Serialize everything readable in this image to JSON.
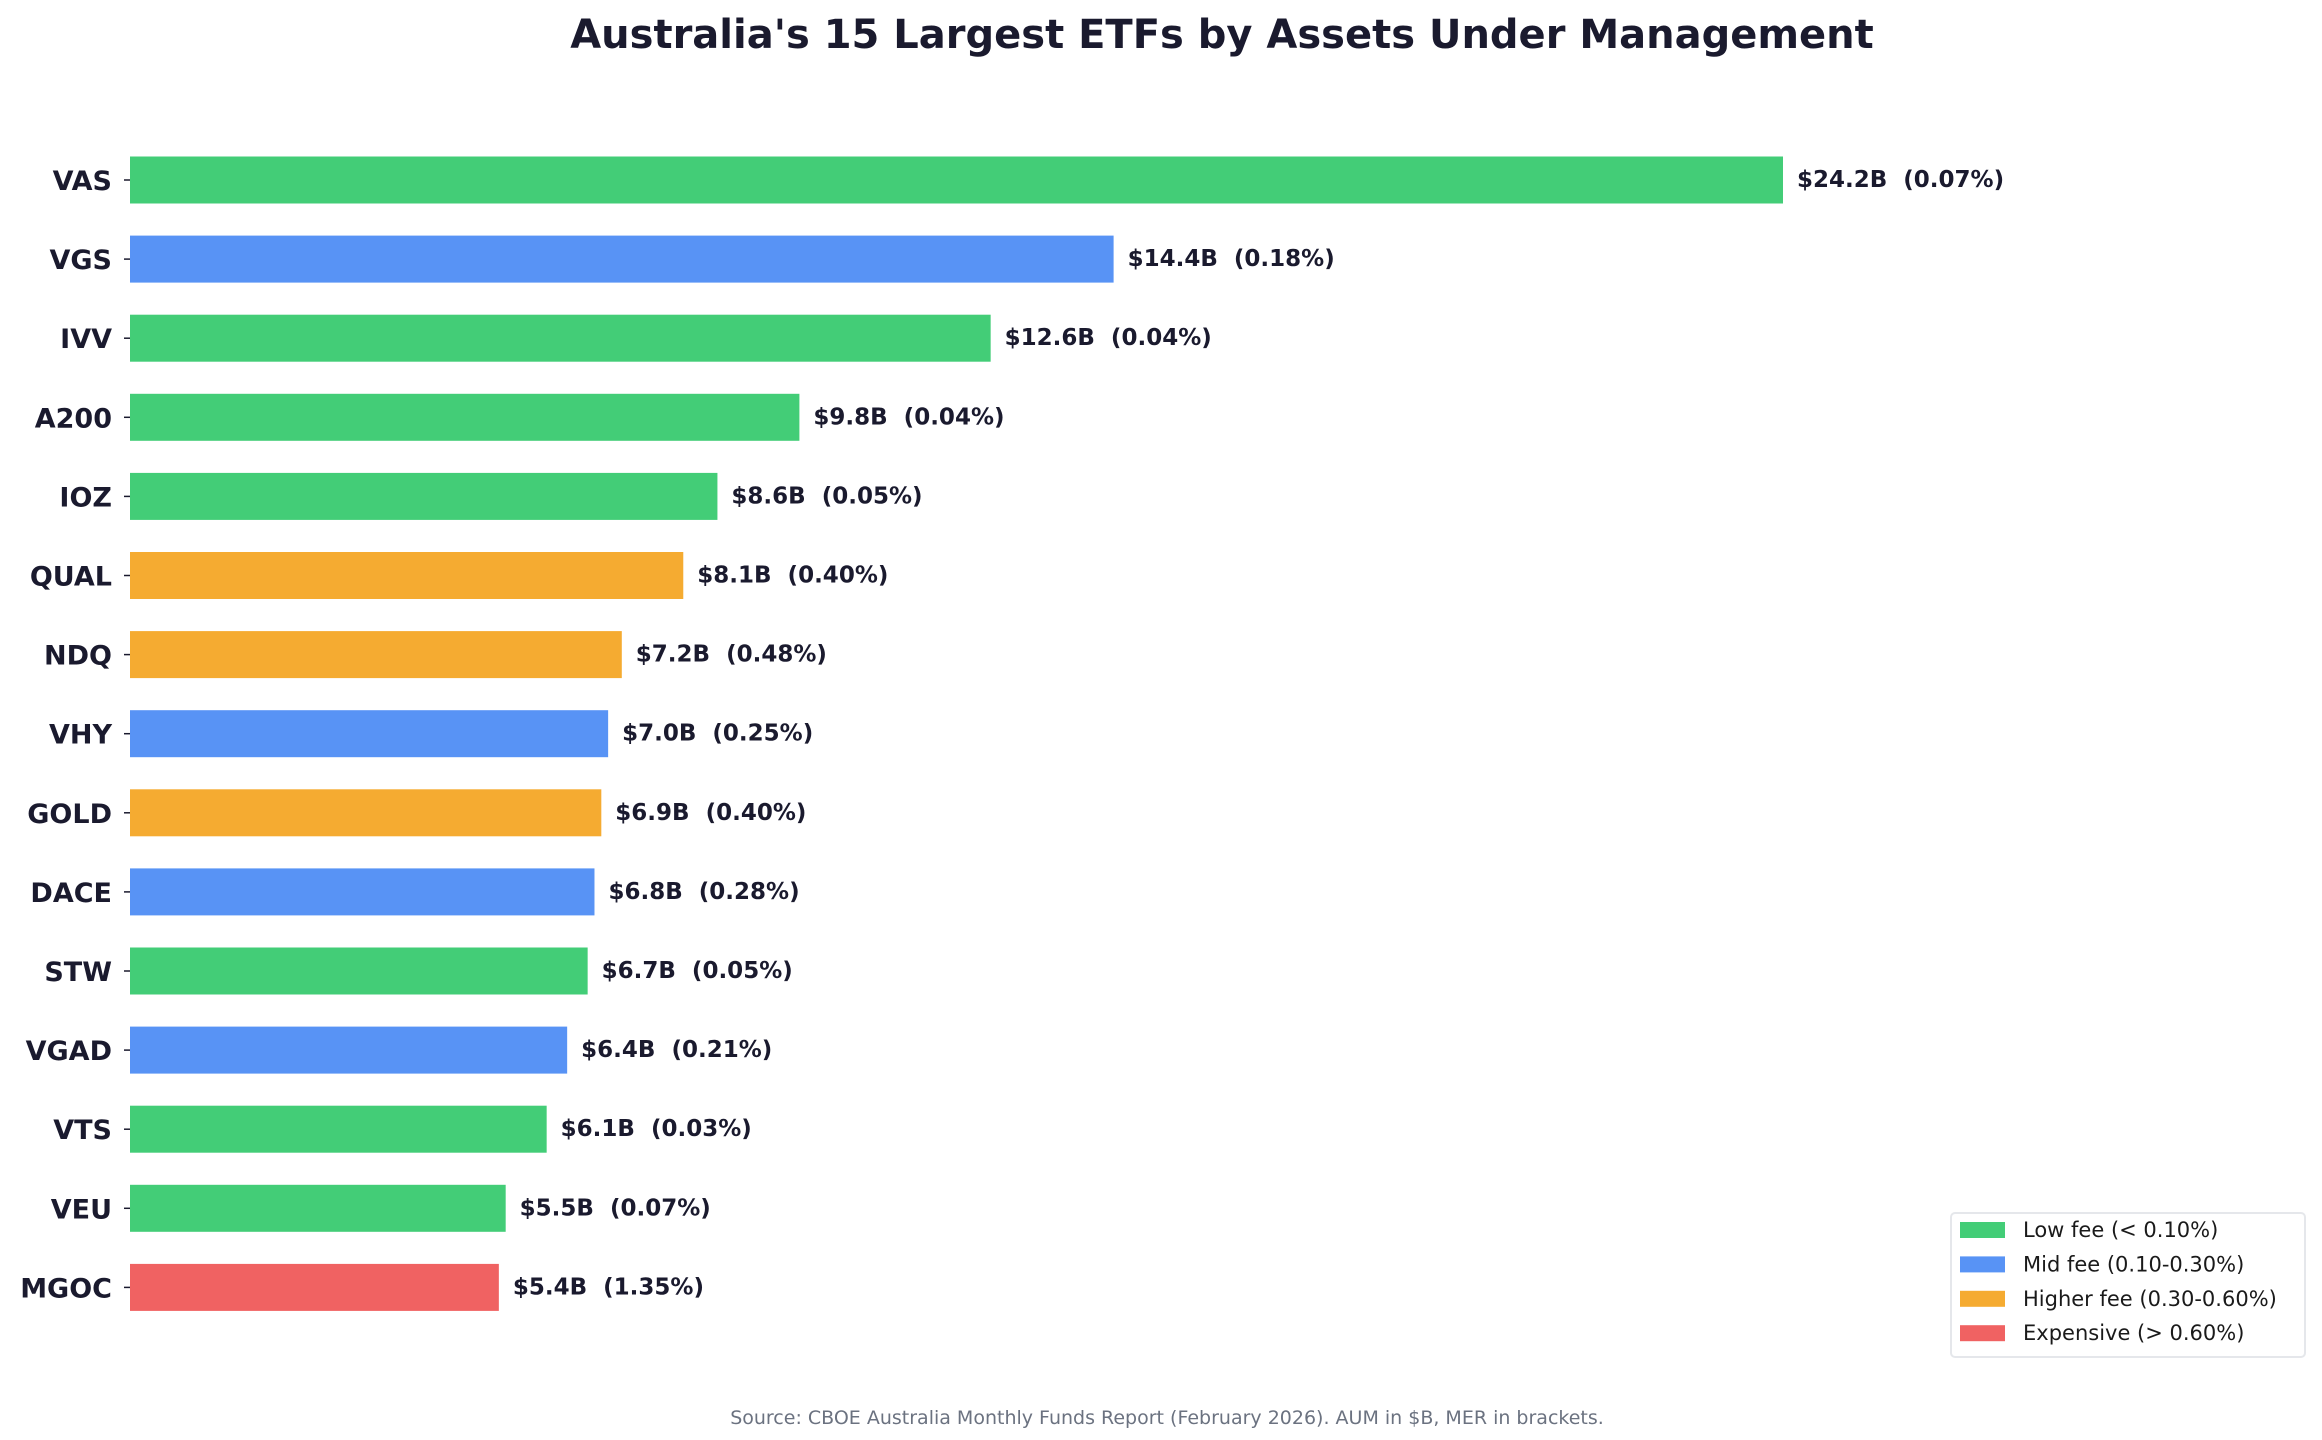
{
  "chart_data": {
    "type": "bar",
    "orientation": "horizontal",
    "title": "Australia's 15 Largest ETFs by Assets Under Management",
    "xlabel": "",
    "ylabel": "",
    "xlim": [
      0,
      26.5
    ],
    "grid": false,
    "categories": [
      "VAS",
      "VGS",
      "IVV",
      "A200",
      "IOZ",
      "QUAL",
      "NDQ",
      "VHY",
      "GOLD",
      "DACE",
      "STW",
      "VGAD",
      "VTS",
      "VEU",
      "MGOC"
    ],
    "values": [
      24.2,
      14.4,
      12.6,
      9.8,
      8.6,
      8.1,
      7.2,
      7.0,
      6.9,
      6.8,
      6.7,
      6.4,
      6.1,
      5.5,
      5.4
    ],
    "mer": [
      0.07,
      0.18,
      0.04,
      0.04,
      0.05,
      0.4,
      0.48,
      0.25,
      0.4,
      0.28,
      0.05,
      0.21,
      0.03,
      0.07,
      1.35
    ],
    "fee_tier": [
      "low",
      "mid",
      "low",
      "low",
      "low",
      "higher",
      "higher",
      "mid",
      "higher",
      "mid",
      "low",
      "mid",
      "low",
      "low",
      "expensive"
    ],
    "data_labels": [
      "$24.2B  (0.07%)",
      "$14.4B  (0.18%)",
      "$12.6B  (0.04%)",
      "$9.8B  (0.04%)",
      "$8.6B  (0.05%)",
      "$8.1B  (0.40%)",
      "$7.2B  (0.48%)",
      "$7.0B  (0.25%)",
      "$6.9B  (0.40%)",
      "$6.8B  (0.28%)",
      "$6.7B  (0.05%)",
      "$6.4B  (0.21%)",
      "$6.1B  (0.03%)",
      "$5.5B  (0.07%)",
      "$5.4B  (1.35%)"
    ],
    "legend": {
      "placement": "lower-right",
      "entries": [
        {
          "key": "low",
          "label": "Low fee (< 0.10%)",
          "color": "#43cd77"
        },
        {
          "key": "mid",
          "label": "Mid fee (0.10-0.30%)",
          "color": "#5893f5"
        },
        {
          "key": "higher",
          "label": "Higher fee (0.30-0.60%)",
          "color": "#f5ab31"
        },
        {
          "key": "expensive",
          "label": "Expensive (> 0.60%)",
          "color": "#f06262"
        }
      ]
    },
    "annotation": "Source: CBOE Australia Monthly Funds Report (February 2026). AUM in $B, MER in brackets."
  },
  "colors": {
    "text": "#1a1a2e",
    "source_text": "#6b7280",
    "legend_border": "#e5e7eb"
  }
}
